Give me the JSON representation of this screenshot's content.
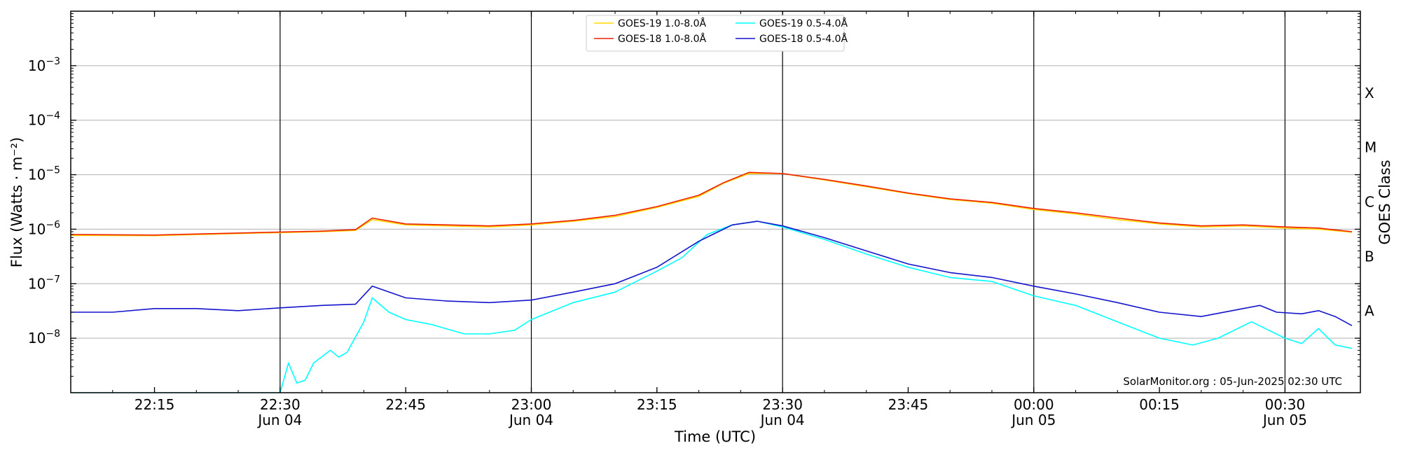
{
  "chart_data": {
    "type": "line",
    "title": "",
    "xlabel": "Time (UTC)",
    "ylabel": "Flux (Watts · m⁻²)",
    "ylabel_right": "GOES Class",
    "y_scale": "log",
    "ylim": [
      1e-09,
      0.01
    ],
    "xlim": [
      "2025-06-04 22:05",
      "2025-06-05 00:39"
    ],
    "grid": "horizontal",
    "legend_position": "top-center",
    "y_ticks": [
      {
        "base": "10",
        "exp": "−8",
        "value": 1e-08
      },
      {
        "base": "10",
        "exp": "−7",
        "value": 1e-07
      },
      {
        "base": "10",
        "exp": "−6",
        "value": 1e-06
      },
      {
        "base": "10",
        "exp": "−5",
        "value": 1e-05
      },
      {
        "base": "10",
        "exp": "−4",
        "value": 0.0001
      },
      {
        "base": "10",
        "exp": "−3",
        "value": 0.001
      }
    ],
    "x_ticks": [
      {
        "time": "2025-06-04 22:15",
        "label": "22:15",
        "sublabel": ""
      },
      {
        "time": "2025-06-04 22:30",
        "label": "22:30",
        "sublabel": "Jun 04"
      },
      {
        "time": "2025-06-04 22:45",
        "label": "22:45",
        "sublabel": ""
      },
      {
        "time": "2025-06-04 23:00",
        "label": "23:00",
        "sublabel": "Jun 04"
      },
      {
        "time": "2025-06-04 23:15",
        "label": "23:15",
        "sublabel": ""
      },
      {
        "time": "2025-06-04 23:30",
        "label": "23:30",
        "sublabel": "Jun 04"
      },
      {
        "time": "2025-06-04 23:45",
        "label": "23:45",
        "sublabel": ""
      },
      {
        "time": "2025-06-05 00:00",
        "label": "00:00",
        "sublabel": "Jun 05"
      },
      {
        "time": "2025-06-05 00:15",
        "label": "00:15",
        "sublabel": ""
      },
      {
        "time": "2025-06-05 00:30",
        "label": "00:30",
        "sublabel": "Jun 05"
      }
    ],
    "vertical_lines": [
      "2025-06-04 22:30",
      "2025-06-04 23:00",
      "2025-06-04 23:30",
      "2025-06-05 00:00",
      "2025-06-05 00:30"
    ],
    "classes": [
      {
        "label": "A",
        "value": 3.16e-08
      },
      {
        "label": "B",
        "value": 3.16e-07
      },
      {
        "label": "C",
        "value": 3.16e-06
      },
      {
        "label": "M",
        "value": 3.16e-05
      },
      {
        "label": "X",
        "value": 0.000316
      }
    ],
    "series": [
      {
        "name": "GOES-19 1.0-8.0Å",
        "color": "#ffd700",
        "points": [
          [
            "2025-06-04 22:05",
            7.7e-07
          ],
          [
            "2025-06-04 22:15",
            7.6e-07
          ],
          [
            "2025-06-04 22:25",
            8.3e-07
          ],
          [
            "2025-06-04 22:35",
            9e-07
          ],
          [
            "2025-06-04 22:39",
            9.5e-07
          ],
          [
            "2025-06-04 22:41",
            1.5e-06
          ],
          [
            "2025-06-04 22:45",
            1.2e-06
          ],
          [
            "2025-06-04 22:55",
            1.1e-06
          ],
          [
            "2025-06-04 23:00",
            1.2e-06
          ],
          [
            "2025-06-04 23:05",
            1.4e-06
          ],
          [
            "2025-06-04 23:10",
            1.7e-06
          ],
          [
            "2025-06-04 23:15",
            2.5e-06
          ],
          [
            "2025-06-04 23:20",
            4e-06
          ],
          [
            "2025-06-04 23:23",
            7e-06
          ],
          [
            "2025-06-04 23:26",
            1.05e-05
          ],
          [
            "2025-06-04 23:30",
            1.05e-05
          ],
          [
            "2025-06-04 23:35",
            8e-06
          ],
          [
            "2025-06-04 23:40",
            6e-06
          ],
          [
            "2025-06-04 23:45",
            4.5e-06
          ],
          [
            "2025-06-04 23:50",
            3.5e-06
          ],
          [
            "2025-06-04 23:55",
            3e-06
          ],
          [
            "2025-06-05 00:00",
            2.3e-06
          ],
          [
            "2025-06-05 00:05",
            1.9e-06
          ],
          [
            "2025-06-05 00:10",
            1.5e-06
          ],
          [
            "2025-06-05 00:15",
            1.25e-06
          ],
          [
            "2025-06-05 00:20",
            1.1e-06
          ],
          [
            "2025-06-05 00:25",
            1.15e-06
          ],
          [
            "2025-06-05 00:30",
            1.05e-06
          ],
          [
            "2025-06-05 00:34",
            1e-06
          ],
          [
            "2025-06-05 00:38",
            8.8e-07
          ]
        ]
      },
      {
        "name": "GOES-18 1.0-8.0Å",
        "color": "#ee2200",
        "points": [
          [
            "2025-06-04 22:05",
            8e-07
          ],
          [
            "2025-06-04 22:15",
            7.8e-07
          ],
          [
            "2025-06-04 22:25",
            8.5e-07
          ],
          [
            "2025-06-04 22:35",
            9.2e-07
          ],
          [
            "2025-06-04 22:39",
            9.8e-07
          ],
          [
            "2025-06-04 22:41",
            1.6e-06
          ],
          [
            "2025-06-04 22:45",
            1.25e-06
          ],
          [
            "2025-06-04 22:55",
            1.15e-06
          ],
          [
            "2025-06-04 23:00",
            1.25e-06
          ],
          [
            "2025-06-04 23:05",
            1.45e-06
          ],
          [
            "2025-06-04 23:10",
            1.8e-06
          ],
          [
            "2025-06-04 23:15",
            2.6e-06
          ],
          [
            "2025-06-04 23:20",
            4.2e-06
          ],
          [
            "2025-06-04 23:23",
            7.2e-06
          ],
          [
            "2025-06-04 23:26",
            1.1e-05
          ],
          [
            "2025-06-04 23:30",
            1.05e-05
          ],
          [
            "2025-06-04 23:35",
            8.2e-06
          ],
          [
            "2025-06-04 23:40",
            6.2e-06
          ],
          [
            "2025-06-04 23:45",
            4.6e-06
          ],
          [
            "2025-06-04 23:50",
            3.6e-06
          ],
          [
            "2025-06-04 23:55",
            3.1e-06
          ],
          [
            "2025-06-05 00:00",
            2.4e-06
          ],
          [
            "2025-06-05 00:05",
            2e-06
          ],
          [
            "2025-06-05 00:10",
            1.6e-06
          ],
          [
            "2025-06-05 00:15",
            1.3e-06
          ],
          [
            "2025-06-05 00:20",
            1.15e-06
          ],
          [
            "2025-06-05 00:25",
            1.2e-06
          ],
          [
            "2025-06-05 00:30",
            1.1e-06
          ],
          [
            "2025-06-05 00:34",
            1.05e-06
          ],
          [
            "2025-06-05 00:38",
            9e-07
          ]
        ]
      },
      {
        "name": "GOES-19 0.5-4.0Å",
        "color": "#00ffff",
        "points": [
          [
            "2025-06-04 22:05",
            1e-09
          ],
          [
            "2025-06-04 22:30",
            1e-09
          ],
          [
            "2025-06-04 22:31",
            3.5e-09
          ],
          [
            "2025-06-04 22:32",
            1.5e-09
          ],
          [
            "2025-06-04 22:33",
            1.7e-09
          ],
          [
            "2025-06-04 22:34",
            3.5e-09
          ],
          [
            "2025-06-04 22:36",
            6e-09
          ],
          [
            "2025-06-04 22:37",
            4.5e-09
          ],
          [
            "2025-06-04 22:38",
            5.5e-09
          ],
          [
            "2025-06-04 22:40",
            2e-08
          ],
          [
            "2025-06-04 22:41",
            5.5e-08
          ],
          [
            "2025-06-04 22:43",
            3e-08
          ],
          [
            "2025-06-04 22:45",
            2.2e-08
          ],
          [
            "2025-06-04 22:48",
            1.8e-08
          ],
          [
            "2025-06-04 22:52",
            1.2e-08
          ],
          [
            "2025-06-04 22:55",
            1.2e-08
          ],
          [
            "2025-06-04 22:58",
            1.4e-08
          ],
          [
            "2025-06-04 23:00",
            2.2e-08
          ],
          [
            "2025-06-04 23:05",
            4.5e-08
          ],
          [
            "2025-06-04 23:10",
            7e-08
          ],
          [
            "2025-06-04 23:15",
            1.7e-07
          ],
          [
            "2025-06-04 23:18",
            3e-07
          ],
          [
            "2025-06-04 23:21",
            8e-07
          ],
          [
            "2025-06-04 23:24",
            1.2e-06
          ],
          [
            "2025-06-04 23:27",
            1.4e-06
          ],
          [
            "2025-06-04 23:30",
            1.1e-06
          ],
          [
            "2025-06-04 23:35",
            6.5e-07
          ],
          [
            "2025-06-04 23:40",
            3.5e-07
          ],
          [
            "2025-06-04 23:45",
            2e-07
          ],
          [
            "2025-06-04 23:50",
            1.3e-07
          ],
          [
            "2025-06-04 23:55",
            1.1e-07
          ],
          [
            "2025-06-05 00:00",
            6e-08
          ],
          [
            "2025-06-05 00:05",
            4e-08
          ],
          [
            "2025-06-05 00:10",
            2e-08
          ],
          [
            "2025-06-05 00:15",
            1e-08
          ],
          [
            "2025-06-05 00:19",
            7.5e-09
          ],
          [
            "2025-06-05 00:22",
            1e-08
          ],
          [
            "2025-06-05 00:26",
            2e-08
          ],
          [
            "2025-06-05 00:30",
            1e-08
          ],
          [
            "2025-06-05 00:32",
            8e-09
          ],
          [
            "2025-06-05 00:34",
            1.5e-08
          ],
          [
            "2025-06-05 00:36",
            7.5e-09
          ],
          [
            "2025-06-05 00:38",
            6.5e-09
          ]
        ]
      },
      {
        "name": "GOES-18 0.5-4.0Å",
        "color": "#1414cc",
        "points": [
          [
            "2025-06-04 22:05",
            3e-08
          ],
          [
            "2025-06-04 22:10",
            3e-08
          ],
          [
            "2025-06-04 22:15",
            3.5e-08
          ],
          [
            "2025-06-04 22:20",
            3.5e-08
          ],
          [
            "2025-06-04 22:25",
            3.2e-08
          ],
          [
            "2025-06-04 22:30",
            3.6e-08
          ],
          [
            "2025-06-04 22:35",
            4e-08
          ],
          [
            "2025-06-04 22:39",
            4.2e-08
          ],
          [
            "2025-06-04 22:41",
            9e-08
          ],
          [
            "2025-06-04 22:45",
            5.5e-08
          ],
          [
            "2025-06-04 22:50",
            4.8e-08
          ],
          [
            "2025-06-04 22:55",
            4.5e-08
          ],
          [
            "2025-06-04 23:00",
            5e-08
          ],
          [
            "2025-06-04 23:05",
            7e-08
          ],
          [
            "2025-06-04 23:10",
            1e-07
          ],
          [
            "2025-06-04 23:15",
            2e-07
          ],
          [
            "2025-06-04 23:20",
            6e-07
          ],
          [
            "2025-06-04 23:24",
            1.2e-06
          ],
          [
            "2025-06-04 23:27",
            1.4e-06
          ],
          [
            "2025-06-04 23:30",
            1.15e-06
          ],
          [
            "2025-06-04 23:35",
            7e-07
          ],
          [
            "2025-06-04 23:40",
            4e-07
          ],
          [
            "2025-06-04 23:45",
            2.3e-07
          ],
          [
            "2025-06-04 23:50",
            1.6e-07
          ],
          [
            "2025-06-04 23:55",
            1.3e-07
          ],
          [
            "2025-06-05 00:00",
            9e-08
          ],
          [
            "2025-06-05 00:05",
            6.5e-08
          ],
          [
            "2025-06-05 00:10",
            4.5e-08
          ],
          [
            "2025-06-05 00:15",
            3e-08
          ],
          [
            "2025-06-05 00:20",
            2.5e-08
          ],
          [
            "2025-06-05 00:25",
            3.5e-08
          ],
          [
            "2025-06-05 00:27",
            4e-08
          ],
          [
            "2025-06-05 00:29",
            3e-08
          ],
          [
            "2025-06-05 00:32",
            2.8e-08
          ],
          [
            "2025-06-05 00:34",
            3.2e-08
          ],
          [
            "2025-06-05 00:36",
            2.5e-08
          ],
          [
            "2025-06-05 00:38",
            1.7e-08
          ]
        ]
      }
    ]
  },
  "footer": "SolarMonitor.org : 05-Jun-2025 02:30 UTC"
}
